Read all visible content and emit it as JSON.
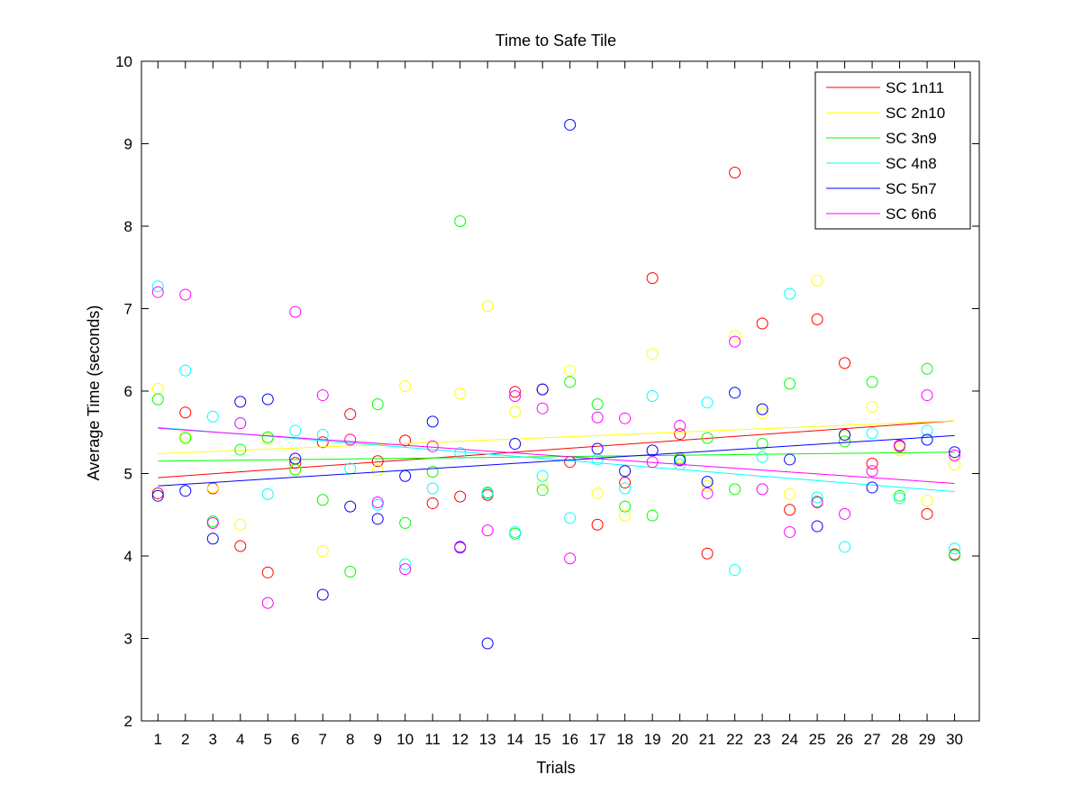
{
  "chart_data": {
    "type": "scatter",
    "title": "Time to Safe Tile",
    "xlabel": "Trials",
    "ylabel": "Average Time (seconds)",
    "xlim": [
      0.4,
      30.9
    ],
    "ylim": [
      2,
      10
    ],
    "x_ticks": [
      1,
      2,
      3,
      4,
      5,
      6,
      7,
      8,
      9,
      10,
      11,
      12,
      13,
      14,
      15,
      16,
      17,
      18,
      19,
      20,
      21,
      22,
      23,
      24,
      25,
      26,
      27,
      28,
      29,
      30
    ],
    "y_ticks": [
      2,
      3,
      4,
      5,
      6,
      7,
      8,
      9,
      10
    ],
    "grid": false,
    "legend_position": "top-right",
    "marker": "open-circle",
    "series": [
      {
        "name": "SC 1n11",
        "color": "#ff0000",
        "x": [
          1,
          2,
          3,
          4,
          5,
          6,
          7,
          8,
          9,
          10,
          11,
          12,
          13,
          14,
          15,
          16,
          17,
          18,
          19,
          20,
          21,
          22,
          23,
          24,
          25,
          26,
          27,
          28,
          29,
          30
        ],
        "values": [
          4.76,
          5.74,
          4.82,
          4.12,
          3.8,
          5.13,
          5.38,
          5.72,
          5.15,
          5.4,
          4.64,
          4.72,
          4.74,
          5.99,
          6.02,
          5.14,
          4.38,
          4.89,
          7.37,
          5.48,
          4.03,
          8.65,
          6.82,
          4.56,
          6.87,
          6.34,
          5.12,
          5.33,
          4.51,
          4.02
        ],
        "trend": [
          4.95,
          5.64
        ]
      },
      {
        "name": "SC 2n10",
        "color": "#ffff00",
        "x": [
          1,
          2,
          3,
          4,
          5,
          6,
          7,
          8,
          9,
          10,
          11,
          12,
          13,
          14,
          15,
          16,
          17,
          18,
          19,
          20,
          21,
          22,
          23,
          24,
          25,
          26,
          27,
          28,
          29,
          30
        ],
        "values": [
          6.03,
          5.45,
          4.83,
          4.38,
          5.42,
          5.04,
          4.06,
          5.42,
          5.04,
          6.06,
          5.02,
          5.97,
          7.03,
          5.75,
          4.87,
          6.25,
          4.76,
          4.49,
          6.45,
          5.2,
          4.85,
          6.67,
          5.73,
          4.75,
          7.34,
          5.45,
          5.81,
          5.28,
          4.67,
          5.11
        ],
        "trend": [
          5.24,
          5.64
        ]
      },
      {
        "name": "SC 3n9",
        "color": "#00ff00",
        "x": [
          1,
          2,
          3,
          4,
          5,
          6,
          7,
          8,
          9,
          10,
          11,
          12,
          13,
          14,
          15,
          16,
          17,
          18,
          19,
          20,
          21,
          22,
          23,
          24,
          25,
          26,
          27,
          28,
          29,
          30
        ],
        "values": [
          5.9,
          5.43,
          4.42,
          5.29,
          5.44,
          5.05,
          4.68,
          3.81,
          5.84,
          4.4,
          5.02,
          8.06,
          4.77,
          4.27,
          4.8,
          6.11,
          5.84,
          4.6,
          4.49,
          5.18,
          5.43,
          4.81,
          5.36,
          6.09,
          4.66,
          5.39,
          6.11,
          4.73,
          6.27,
          4.01
        ],
        "trend": [
          5.15,
          5.26
        ]
      },
      {
        "name": "SC 4n8",
        "color": "#00ffff",
        "x": [
          1,
          2,
          3,
          4,
          5,
          6,
          7,
          8,
          9,
          10,
          11,
          12,
          13,
          14,
          15,
          16,
          17,
          18,
          19,
          20,
          21,
          22,
          23,
          24,
          25,
          26,
          27,
          28,
          29,
          30
        ],
        "values": [
          7.27,
          6.25,
          5.69,
          5.61,
          4.75,
          5.52,
          5.47,
          5.06,
          4.62,
          3.9,
          4.82,
          5.25,
          4.76,
          4.29,
          4.97,
          4.46,
          5.17,
          4.82,
          5.94,
          5.11,
          5.86,
          3.83,
          5.2,
          7.18,
          4.71,
          4.11,
          5.49,
          4.7,
          5.52,
          4.09
        ],
        "trend": [
          5.56,
          4.78
        ]
      },
      {
        "name": "SC 5n7",
        "color": "#0000ff",
        "x": [
          1,
          2,
          3,
          4,
          5,
          6,
          7,
          8,
          9,
          10,
          11,
          12,
          13,
          14,
          15,
          16,
          17,
          18,
          19,
          20,
          21,
          22,
          23,
          24,
          25,
          26,
          27,
          28,
          29,
          30
        ],
        "values": [
          4.73,
          4.79,
          4.21,
          5.87,
          5.9,
          5.18,
          3.53,
          4.6,
          4.45,
          4.97,
          5.63,
          4.11,
          2.94,
          5.36,
          6.02,
          9.23,
          5.3,
          5.03,
          5.28,
          5.16,
          4.9,
          5.98,
          5.78,
          5.17,
          4.36,
          5.47,
          4.83,
          5.34,
          5.41,
          5.26
        ],
        "trend": [
          4.85,
          5.46
        ]
      },
      {
        "name": "SC 6n6",
        "color": "#ff00ff",
        "x": [
          1,
          2,
          3,
          4,
          5,
          6,
          7,
          8,
          9,
          10,
          11,
          12,
          13,
          14,
          15,
          16,
          17,
          18,
          19,
          20,
          21,
          22,
          23,
          24,
          25,
          26,
          27,
          28,
          29,
          30
        ],
        "values": [
          7.2,
          7.17,
          4.4,
          5.61,
          3.43,
          6.96,
          5.95,
          5.41,
          4.65,
          3.84,
          5.33,
          4.1,
          4.31,
          5.94,
          5.79,
          3.97,
          5.68,
          5.67,
          5.14,
          5.58,
          4.76,
          6.6,
          4.81,
          4.29,
          4.65,
          4.51,
          5.03,
          5.34,
          5.95,
          5.22
        ],
        "trend": [
          5.55,
          4.88
        ]
      }
    ]
  }
}
